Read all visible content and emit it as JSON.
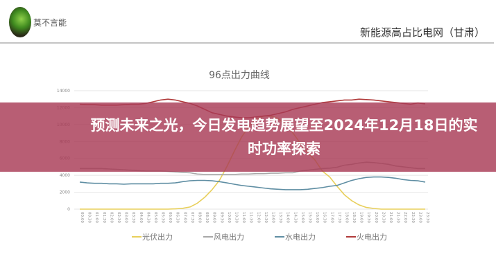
{
  "header": {
    "author": "莫不言能",
    "site_title": "新能源高占比电网（甘肃）"
  },
  "banner": {
    "headline": "预测未来之光，今日发电趋势展望至2024年12月18日的实时功率探索"
  },
  "chart_data": {
    "type": "line",
    "title": "96点出力曲线",
    "xlabel": "",
    "ylabel": "",
    "ylim": [
      0,
      14000
    ],
    "yticks": [
      0,
      2000,
      4000,
      6000,
      8000,
      10000,
      12000,
      14000
    ],
    "grid": true,
    "legend_position": "bottom",
    "x": [
      "00:00",
      "00:30",
      "01:00",
      "01:30",
      "02:00",
      "02:30",
      "03:00",
      "03:30",
      "04:00",
      "04:30",
      "05:00",
      "05:30",
      "06:00",
      "06:30",
      "07:00",
      "07:30",
      "08:00",
      "08:30",
      "09:00",
      "09:30",
      "10:00",
      "10:30",
      "11:00",
      "11:30",
      "12:00",
      "12:30",
      "13:00",
      "13:30",
      "14:00",
      "14:30",
      "15:00",
      "15:30",
      "16:00",
      "16:30",
      "17:00",
      "17:30",
      "18:00",
      "18:30",
      "19:00",
      "19:30",
      "20:00",
      "20:30",
      "21:00",
      "21:30",
      "22:00",
      "22:30",
      "23:00",
      "23:30"
    ],
    "series": [
      {
        "name": "光伏出力",
        "color": "#e8cf5a",
        "values": [
          0,
          0,
          0,
          0,
          0,
          0,
          0,
          0,
          0,
          0,
          0,
          0,
          0,
          30,
          100,
          250,
          700,
          1400,
          2300,
          3400,
          5000,
          6800,
          8500,
          9800,
          10600,
          11000,
          11000,
          10700,
          10000,
          9000,
          7800,
          6700,
          5800,
          4500,
          3800,
          2700,
          1700,
          1000,
          500,
          200,
          80,
          0,
          0,
          0,
          0,
          0,
          0,
          0
        ]
      },
      {
        "name": "风电出力",
        "color": "#a8a8a8",
        "values": [
          4800,
          4800,
          4800,
          4800,
          4750,
          4700,
          4650,
          4600,
          4550,
          4500,
          4500,
          4500,
          4450,
          4400,
          4350,
          4300,
          4150,
          4100,
          4100,
          4100,
          4100,
          4100,
          4150,
          4150,
          4200,
          4200,
          4250,
          4250,
          4300,
          4300,
          4500,
          4600,
          4700,
          4800,
          4850,
          4950,
          5200,
          5300,
          5450,
          5550,
          5500,
          5400,
          5300,
          5100,
          5000,
          4900,
          4800,
          4800
        ]
      },
      {
        "name": "水电出力",
        "color": "#5f8ea3",
        "values": [
          3200,
          3100,
          3050,
          3050,
          3000,
          3000,
          2950,
          3000,
          3000,
          3000,
          3000,
          3050,
          3050,
          3100,
          3250,
          3350,
          3400,
          3400,
          3350,
          3250,
          3100,
          2950,
          2800,
          2700,
          2600,
          2500,
          2400,
          2350,
          2300,
          2300,
          2300,
          2350,
          2450,
          2550,
          2700,
          2800,
          3100,
          3400,
          3600,
          3750,
          3800,
          3800,
          3750,
          3650,
          3500,
          3400,
          3350,
          3200
        ]
      },
      {
        "name": "火电出力",
        "color": "#b03a3a",
        "values": [
          12400,
          12350,
          12350,
          12300,
          12300,
          12300,
          12350,
          12400,
          12400,
          12500,
          12700,
          12900,
          13000,
          12900,
          12700,
          12500,
          12200,
          11800,
          11400,
          11200,
          11000,
          10900,
          10800,
          10800,
          10900,
          11000,
          11100,
          11300,
          11500,
          11800,
          12000,
          12200,
          12400,
          12600,
          12700,
          12800,
          12900,
          12900,
          13000,
          12950,
          12900,
          12800,
          12700,
          12600,
          12500,
          12400,
          12550,
          12450
        ]
      }
    ]
  }
}
